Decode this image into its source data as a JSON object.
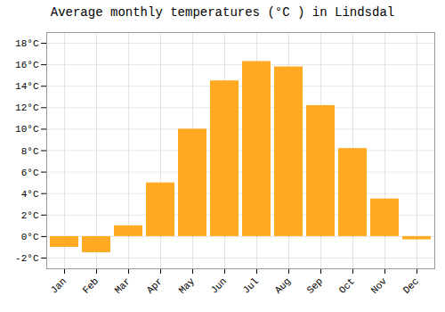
{
  "chart_data": {
    "type": "bar",
    "title": "Average monthly temperatures (°C ) in Lindsdal",
    "categories": [
      "Jan",
      "Feb",
      "Mar",
      "Apr",
      "May",
      "Jun",
      "Jul",
      "Aug",
      "Sep",
      "Oct",
      "Nov",
      "Dec"
    ],
    "values": [
      -1.0,
      -1.5,
      1.0,
      5.0,
      10.0,
      14.5,
      16.3,
      15.8,
      12.2,
      8.2,
      3.5,
      -0.3
    ],
    "color": "#FFAA22",
    "ylim": [
      -3,
      19
    ],
    "yticks": [
      {
        "value": -2,
        "label": "-2°C"
      },
      {
        "value": 0,
        "label": "0°C"
      },
      {
        "value": 2,
        "label": "2°C"
      },
      {
        "value": 4,
        "label": "4°C"
      },
      {
        "value": 6,
        "label": "6°C"
      },
      {
        "value": 8,
        "label": "8°C"
      },
      {
        "value": 10,
        "label": "10°C"
      },
      {
        "value": 12,
        "label": "12°C"
      },
      {
        "value": 14,
        "label": "14°C"
      },
      {
        "value": 16,
        "label": "16°C"
      },
      {
        "value": 18,
        "label": "18°C"
      }
    ],
    "grid": true
  }
}
